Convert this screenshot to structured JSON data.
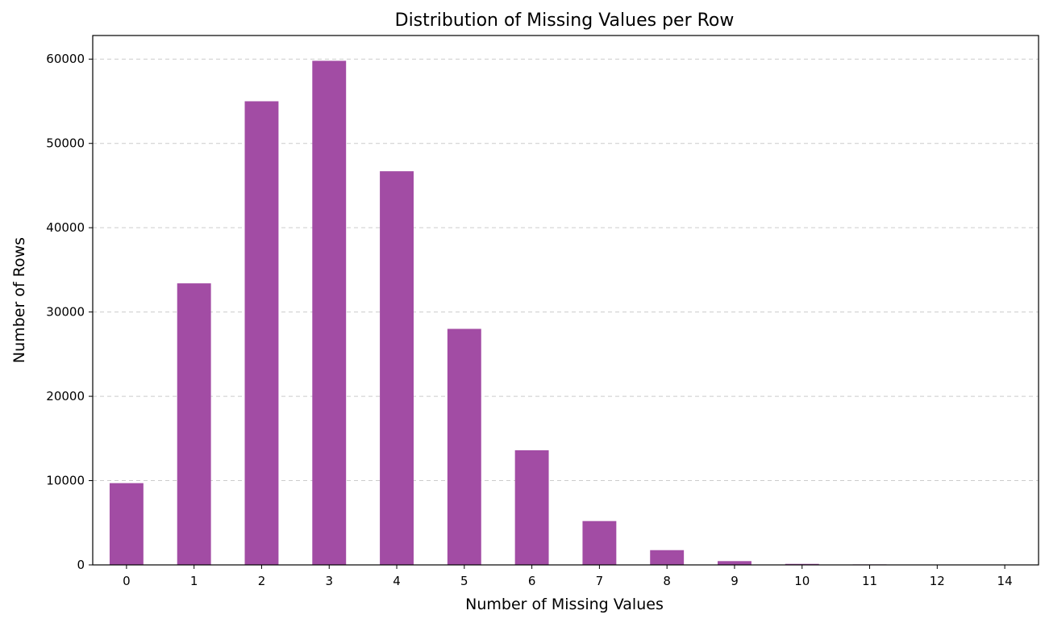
{
  "chart_data": {
    "type": "bar",
    "title": "Distribution of Missing Values per Row",
    "xlabel": "Number of Missing Values",
    "ylabel": "Number of Rows",
    "categories": [
      "0",
      "1",
      "2",
      "3",
      "4",
      "5",
      "6",
      "7",
      "8",
      "9",
      "10",
      "11",
      "12",
      "14"
    ],
    "values": [
      9700,
      33400,
      55000,
      59800,
      46700,
      28000,
      13600,
      5200,
      1750,
      450,
      120,
      60,
      15,
      5
    ],
    "ylim": [
      0,
      62800
    ],
    "yticks": [
      0,
      10000,
      20000,
      30000,
      40000,
      50000,
      60000
    ],
    "grid": "y-dashed",
    "bar_color": "#a24ca4",
    "legend": "none"
  }
}
